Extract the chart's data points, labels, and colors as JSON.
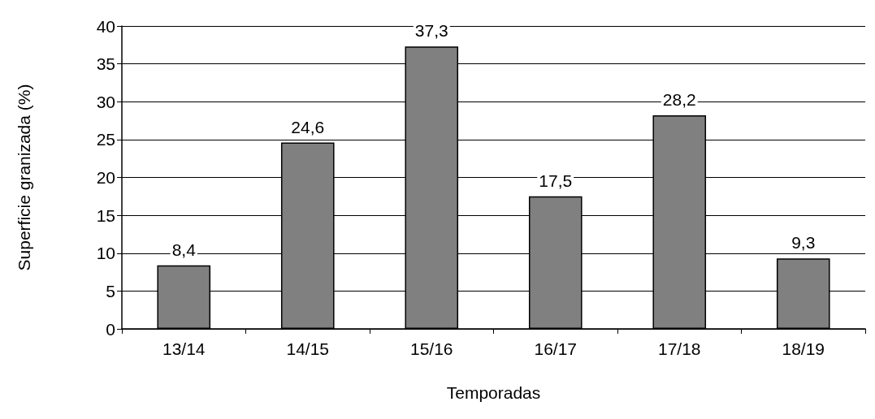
{
  "chart_data": {
    "type": "bar",
    "xlabel": "Temporadas",
    "ylabel": "Superficie granizada (%)",
    "categories": [
      "13/14",
      "14/15",
      "15/16",
      "16/17",
      "17/18",
      "18/19"
    ],
    "values": [
      8.4,
      24.6,
      37.3,
      17.5,
      28.2,
      9.3
    ],
    "value_labels": [
      "8,4",
      "24,6",
      "37,3",
      "17,5",
      "28,2",
      "9,3"
    ],
    "color": "#808080",
    "ylim": [
      0,
      40
    ],
    "yticks": [
      0,
      5,
      10,
      15,
      20,
      25,
      30,
      35,
      40
    ],
    "grid": "y"
  }
}
